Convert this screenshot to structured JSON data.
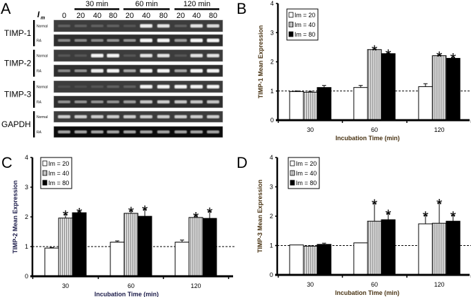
{
  "gel": {
    "panel_label": "A",
    "im_label": "I",
    "im_sub": "m",
    "time_groups": [
      "30 min",
      "60 min",
      "120 min"
    ],
    "lanes": [
      "0",
      "20",
      "40",
      "80",
      "20",
      "40",
      "80",
      "20",
      "40",
      "80"
    ],
    "genes": [
      {
        "name": "TIMP-1",
        "rows": [
          {
            "label": "Normal",
            "intensity": [
              0.2,
              0.2,
              0.2,
              0.2,
              0.15,
              0.9,
              0.85,
              0.2,
              0.85,
              0.8
            ]
          },
          {
            "label": "RA",
            "intensity": [
              0.4,
              0.4,
              0.4,
              0.45,
              0.45,
              0.95,
              0.95,
              0.5,
              0.95,
              0.95
            ]
          }
        ]
      },
      {
        "name": "TIMP-2",
        "rows": [
          {
            "label": "Normal",
            "intensity": [
              0.15,
              0.15,
              0.95,
              0.95,
              0.15,
              0.85,
              0.85,
              0.15,
              0.85,
              0.85
            ]
          },
          {
            "label": "RA",
            "intensity": [
              0.4,
              0.45,
              0.9,
              0.95,
              0.55,
              0.95,
              0.95,
              0.55,
              0.95,
              0.95
            ]
          }
        ]
      },
      {
        "name": "TIMP-3",
        "rows": [
          {
            "label": "Normal",
            "intensity": [
              0.1,
              0.1,
              0.15,
              0.2,
              0.2,
              0.95,
              0.95,
              0.95,
              0.95,
              0.95
            ]
          },
          {
            "label": "RA",
            "intensity": [
              0.45,
              0.45,
              0.45,
              0.45,
              0.5,
              0.7,
              0.75,
              0.7,
              0.7,
              0.7
            ]
          }
        ]
      },
      {
        "name": "GAPDH",
        "rows": [
          {
            "label": "Normal",
            "intensity": [
              0.75,
              0.75,
              0.75,
              0.75,
              0.75,
              0.75,
              0.75,
              0.75,
              0.75,
              0.75
            ]
          },
          {
            "label": "RA",
            "intensity": [
              0.55,
              0.55,
              0.55,
              0.55,
              0.55,
              0.55,
              0.55,
              0.55,
              0.55,
              0.55
            ]
          }
        ]
      }
    ]
  },
  "chart_data": [
    {
      "panel_label": "B",
      "type": "bar",
      "title": "",
      "xlabel": "Incubation Time (min)",
      "ylabel": "TIMP-1 Mean Expression",
      "categories": [
        "30",
        "60",
        "120"
      ],
      "ylim": [
        0,
        4
      ],
      "yticks": [
        "0",
        "1",
        "2",
        "3",
        "4"
      ],
      "reference_line": 1,
      "legend_position": "top-left",
      "axis_label_color": "#4a3414",
      "series": [
        {
          "name": "Im = 20",
          "values": [
            0.98,
            1.12,
            1.15
          ],
          "errors": [
            0.02,
            0.07,
            0.1
          ],
          "significant": [
            false,
            false,
            false
          ]
        },
        {
          "name": "Im = 40",
          "values": [
            0.96,
            2.42,
            2.21
          ],
          "errors": [
            0.03,
            0.02,
            0.02
          ],
          "significant": [
            false,
            true,
            true
          ]
        },
        {
          "name": "Im = 80",
          "values": [
            1.12,
            2.28,
            2.12
          ],
          "errors": [
            0.07,
            0.02,
            0.04
          ],
          "significant": [
            false,
            true,
            true
          ]
        }
      ]
    },
    {
      "panel_label": "C",
      "type": "bar",
      "title": "",
      "xlabel": "Incubation Time (min)",
      "ylabel": "TIMP-2 Mean Expression",
      "categories": [
        "30",
        "60",
        "120"
      ],
      "ylim": [
        0,
        4
      ],
      "yticks": [
        "0",
        "1",
        "2",
        "3",
        "4"
      ],
      "reference_line": 1,
      "legend_position": "top-left",
      "axis_label_color": "#1c1c4a",
      "series": [
        {
          "name": "Im = 20",
          "values": [
            0.95,
            1.15,
            1.15
          ],
          "errors": [
            0.02,
            0.04,
            0.07
          ],
          "significant": [
            false,
            false,
            false
          ]
        },
        {
          "name": "Im = 40",
          "values": [
            1.96,
            2.12,
            1.98
          ],
          "errors": [
            0.13,
            0.09,
            0.06
          ],
          "significant": [
            true,
            true,
            true
          ]
        },
        {
          "name": "Im = 80",
          "values": [
            2.14,
            2.02,
            1.95
          ],
          "errors": [
            0.04,
            0.24,
            0.24
          ],
          "significant": [
            true,
            true,
            true
          ]
        }
      ]
    },
    {
      "panel_label": "D",
      "type": "bar",
      "title": "",
      "xlabel": "Incubation Time (min)",
      "ylabel": "TIMP-3 Mean Expression",
      "categories": [
        "30",
        "60",
        "120"
      ],
      "ylim": [
        0,
        4
      ],
      "yticks": [
        "0",
        "1",
        "2",
        "3",
        "4"
      ],
      "reference_line": 1,
      "legend_position": "top-left",
      "axis_label_color": "#4a3414",
      "series": [
        {
          "name": "Im = 20",
          "values": [
            1.02,
            1.09,
            1.74
          ],
          "errors": [
            0.0,
            0.0,
            0.3
          ],
          "significant": [
            false,
            false,
            true
          ]
        },
        {
          "name": "Im = 40",
          "values": [
            0.98,
            1.83,
            1.76
          ],
          "errors": [
            0.01,
            0.62,
            0.7
          ],
          "significant": [
            false,
            true,
            true
          ]
        },
        {
          "name": "Im = 80",
          "values": [
            1.04,
            1.88,
            1.83
          ],
          "errors": [
            0.04,
            0.22,
            0.21
          ],
          "significant": [
            false,
            true,
            true
          ]
        }
      ]
    }
  ],
  "significance_marker": "*",
  "colors": {
    "series": [
      "#ffffff",
      "striped-grey",
      "#000000"
    ],
    "gel_bg": "#3c3c3c"
  }
}
